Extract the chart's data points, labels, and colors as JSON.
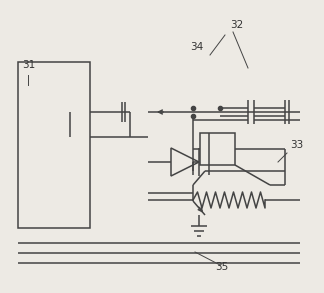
{
  "fig_width": 3.24,
  "fig_height": 2.93,
  "dpi": 100,
  "bg_color": "#edeae4",
  "line_color": "#444444",
  "lw": 1.1
}
